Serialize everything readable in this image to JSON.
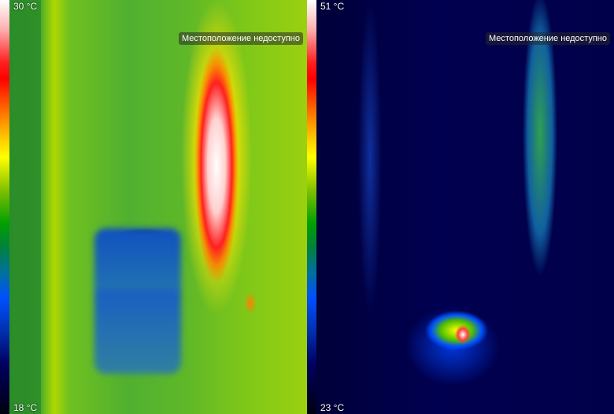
{
  "panels": [
    {
      "palette": "iron-rainbow",
      "max_temp": "30 °C",
      "min_temp": "18 °C",
      "location_status": "Местоположение недоступно"
    },
    {
      "palette": "iron-rainbow",
      "max_temp": "51 °C",
      "min_temp": "23 °C",
      "location_status": "Местоположение недоступно"
    }
  ]
}
